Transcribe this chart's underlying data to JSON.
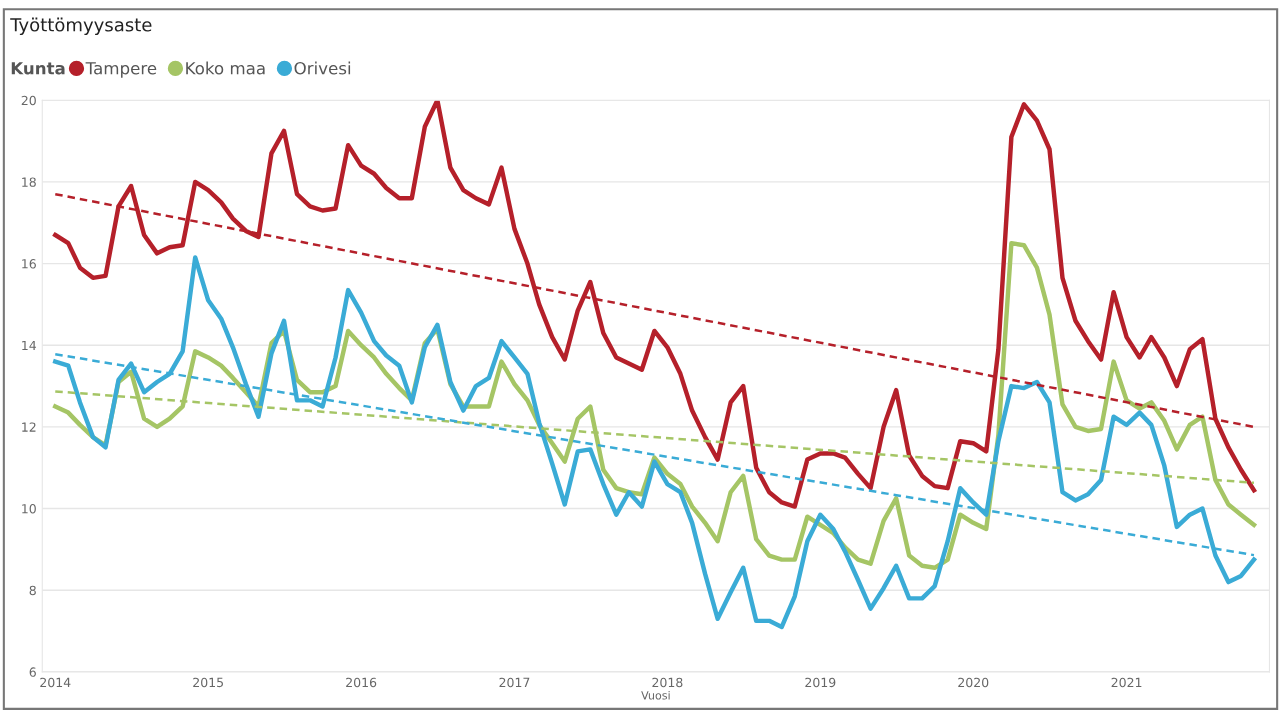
{
  "chart_data": {
    "type": "line",
    "title": "Työttömyysaste",
    "xlabel": "Vuosi",
    "legend_title": "Kunta",
    "legend": "top left",
    "grid": "y",
    "x": [
      "2014-01",
      "2014-02",
      "2014-03",
      "2014-04",
      "2014-05",
      "2014-06",
      "2014-07",
      "2014-08",
      "2014-09",
      "2014-10",
      "2014-11",
      "2014-12",
      "2015-01",
      "2015-02",
      "2015-03",
      "2015-04",
      "2015-05",
      "2015-06",
      "2015-07",
      "2015-08",
      "2015-09",
      "2015-10",
      "2015-11",
      "2015-12",
      "2016-01",
      "2016-02",
      "2016-03",
      "2016-04",
      "2016-05",
      "2016-06",
      "2016-07",
      "2016-08",
      "2016-09",
      "2016-10",
      "2016-11",
      "2016-12",
      "2017-01",
      "2017-02",
      "2017-03",
      "2017-04",
      "2017-05",
      "2017-06",
      "2017-07",
      "2017-08",
      "2017-09",
      "2017-10",
      "2017-11",
      "2017-12",
      "2018-01",
      "2018-02",
      "2018-03",
      "2018-04",
      "2018-05",
      "2018-06",
      "2018-07",
      "2018-08",
      "2018-09",
      "2018-10",
      "2018-11",
      "2018-12",
      "2019-01",
      "2019-02",
      "2019-03",
      "2019-04",
      "2019-05",
      "2019-06",
      "2019-07",
      "2019-08",
      "2019-09",
      "2019-10",
      "2019-11",
      "2019-12",
      "2020-01",
      "2020-02",
      "2020-03",
      "2020-04",
      "2020-05",
      "2020-06",
      "2020-07",
      "2020-08",
      "2020-09",
      "2020-10",
      "2020-11",
      "2020-12",
      "2021-01",
      "2021-02",
      "2021-03",
      "2021-04",
      "2021-05",
      "2021-06",
      "2021-07",
      "2021-08",
      "2021-09",
      "2021-10",
      "2021-11"
    ],
    "xlim": [
      "2013-12-01",
      "2021-12-08"
    ],
    "xticks": [
      {
        "value": "2014-01-01",
        "label": "2014"
      },
      {
        "value": "2015-01-01",
        "label": "2015"
      },
      {
        "value": "2016-01-01",
        "label": "2016"
      },
      {
        "value": "2017-01-01",
        "label": "2017"
      },
      {
        "value": "2018-01-01",
        "label": "2018"
      },
      {
        "value": "2019-01-01",
        "label": "2019"
      },
      {
        "value": "2020-01-01",
        "label": "2020"
      },
      {
        "value": "2021-01-01",
        "label": "2021"
      }
    ],
    "ylim": [
      6,
      20
    ],
    "yticks": [
      6,
      8,
      10,
      12,
      14,
      16,
      18,
      20
    ],
    "series": [
      {
        "name": "Tampere",
        "color": "#b5202a",
        "values": [
          16.7,
          16.5,
          15.9,
          15.65,
          15.7,
          17.4,
          17.9,
          16.7,
          16.25,
          16.4,
          16.45,
          18.0,
          17.8,
          17.5,
          17.1,
          16.8,
          16.65,
          18.7,
          19.25,
          17.7,
          17.4,
          17.3,
          17.35,
          18.9,
          18.4,
          18.2,
          17.85,
          17.6,
          17.6,
          19.35,
          20.0,
          18.35,
          17.8,
          17.6,
          17.45,
          18.35,
          16.85,
          16.0,
          15.0,
          14.2,
          13.65,
          14.85,
          15.55,
          14.3,
          13.7,
          13.55,
          13.4,
          14.35,
          13.95,
          13.3,
          12.4,
          11.75,
          11.2,
          12.6,
          13.0,
          11.0,
          10.4,
          10.15,
          10.05,
          11.2,
          11.35,
          11.35,
          11.25,
          10.85,
          10.5,
          12.0,
          12.9,
          11.3,
          10.8,
          10.55,
          10.5,
          11.65,
          11.6,
          11.4,
          13.9,
          19.1,
          19.9,
          19.5,
          18.8,
          15.65,
          14.6,
          14.1,
          13.65,
          15.3,
          14.2,
          13.7,
          14.2,
          13.7,
          13.0,
          13.9,
          14.15,
          12.2,
          11.5,
          10.95,
          10.45
        ]
      },
      {
        "name": "Koko maa",
        "color": "#a5c565",
        "values": [
          12.5,
          12.35,
          12.05,
          11.75,
          11.55,
          13.1,
          13.35,
          12.2,
          12.0,
          12.2,
          12.5,
          13.85,
          13.7,
          13.5,
          13.2,
          12.85,
          12.5,
          14.05,
          14.35,
          13.15,
          12.85,
          12.85,
          13.0,
          14.35,
          14.0,
          13.7,
          13.3,
          12.95,
          12.65,
          14.05,
          14.4,
          13.05,
          12.5,
          12.5,
          12.5,
          13.6,
          13.05,
          12.65,
          12.05,
          11.6,
          11.15,
          12.2,
          12.5,
          10.95,
          10.5,
          10.4,
          10.35,
          11.25,
          10.85,
          10.6,
          10.05,
          9.65,
          9.2,
          10.4,
          10.8,
          9.25,
          8.85,
          8.75,
          8.75,
          9.8,
          9.6,
          9.4,
          9.05,
          8.75,
          8.65,
          9.7,
          10.25,
          8.85,
          8.6,
          8.55,
          8.75,
          9.85,
          9.65,
          9.5,
          11.8,
          16.5,
          16.45,
          15.9,
          14.75,
          12.55,
          12.0,
          11.9,
          11.95,
          13.6,
          12.65,
          12.45,
          12.6,
          12.15,
          11.45,
          12.05,
          12.25,
          10.7,
          10.1,
          9.85,
          9.6
        ]
      },
      {
        "name": "Orivesi",
        "color": "#3aabd6",
        "values": [
          13.6,
          13.5,
          12.6,
          11.75,
          11.5,
          13.15,
          13.55,
          12.85,
          13.1,
          13.3,
          13.85,
          16.15,
          15.1,
          14.65,
          13.95,
          13.05,
          12.25,
          13.8,
          14.6,
          12.65,
          12.65,
          12.5,
          13.7,
          15.35,
          14.8,
          14.1,
          13.75,
          13.5,
          12.6,
          13.95,
          14.5,
          13.1,
          12.4,
          13.0,
          13.2,
          14.1,
          13.7,
          13.3,
          12.1,
          11.1,
          10.1,
          11.4,
          11.45,
          10.6,
          9.85,
          10.4,
          10.05,
          11.15,
          10.6,
          10.4,
          9.65,
          8.4,
          7.3,
          7.95,
          8.55,
          7.25,
          7.25,
          7.1,
          7.85,
          9.2,
          9.85,
          9.5,
          8.95,
          8.25,
          7.55,
          8.05,
          8.6,
          7.8,
          7.8,
          8.1,
          9.2,
          10.5,
          10.15,
          9.85,
          11.65,
          13.0,
          12.95,
          13.1,
          12.6,
          10.4,
          10.2,
          10.35,
          10.7,
          12.25,
          12.05,
          12.35,
          12.05,
          11.05,
          9.55,
          9.85,
          10.0,
          8.85,
          8.2,
          8.35,
          8.75
        ]
      },
      {
        "color": "#b5202a",
        "line_style": "dashed",
        "x": [
          "2014-01",
          "2021-11"
        ],
        "values": [
          17.7,
          12.0
        ]
      },
      {
        "color": "#a5c565",
        "line_style": "dashed",
        "x": [
          "2014-01",
          "2021-11"
        ],
        "values": [
          12.87,
          10.63
        ]
      },
      {
        "color": "#3aabd6",
        "line_style": "dashed",
        "x": [
          "2014-01",
          "2021-11"
        ],
        "values": [
          13.78,
          8.86
        ]
      }
    ]
  }
}
